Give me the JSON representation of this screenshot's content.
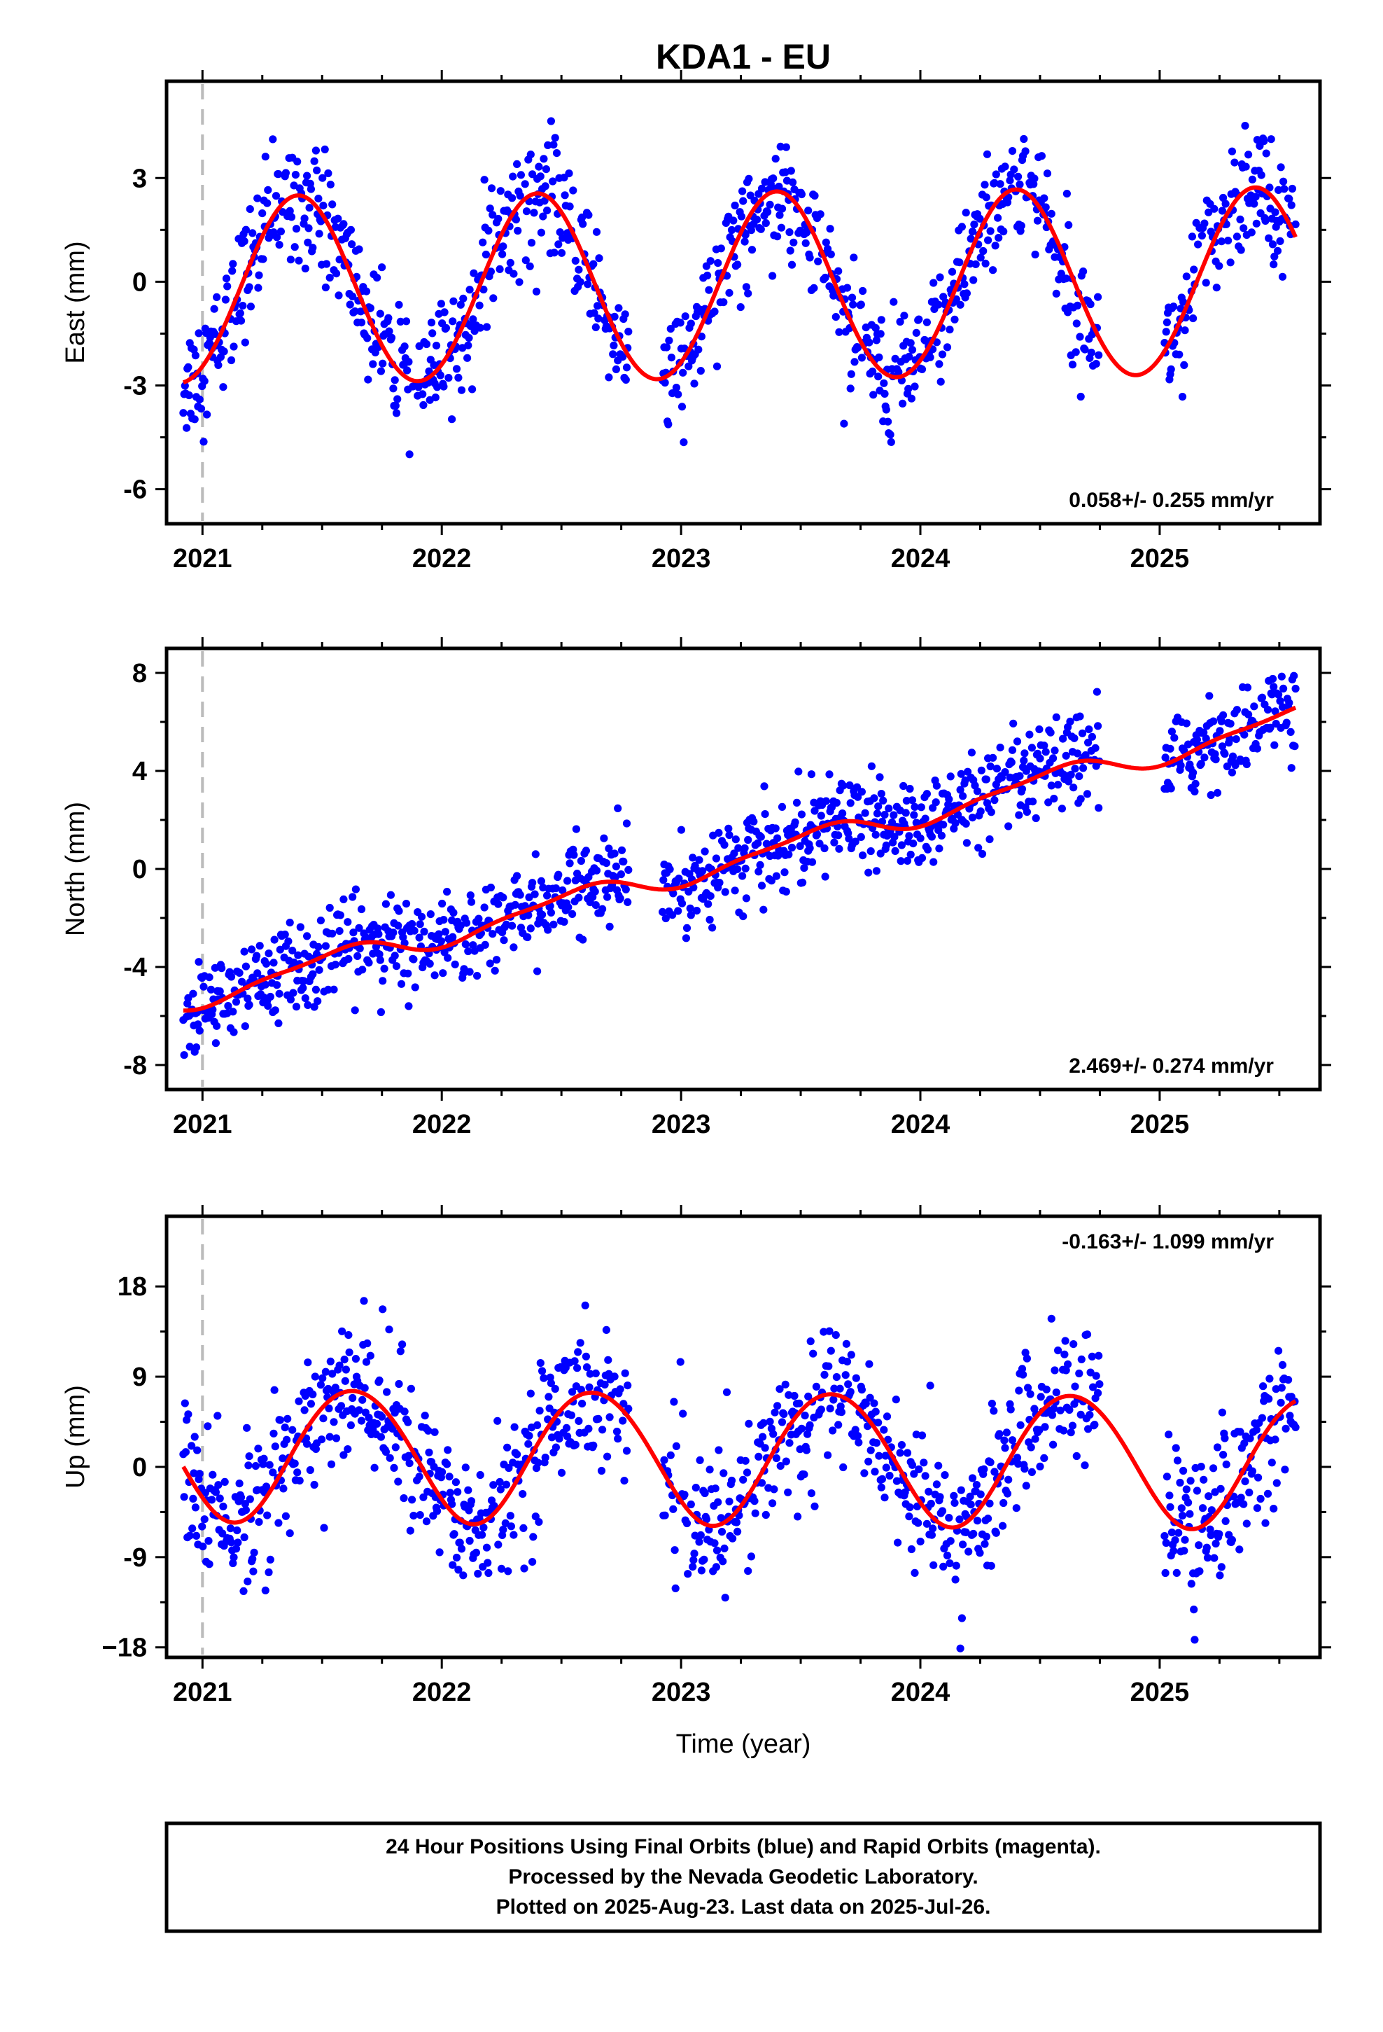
{
  "figure": {
    "title": "KDA1 - EU",
    "xlabel": "Time (year)",
    "caption_lines": [
      "24 Hour Positions Using Final Orbits (blue) and Rapid Orbits (magenta).",
      "Processed by the Nevada Geodetic Laboratory.",
      "Plotted on 2025-Aug-23. Last data on 2025-Jul-26."
    ]
  },
  "colors": {
    "points": "#0000ff",
    "model": "#ff0000",
    "reference_line": "#bbbbbb",
    "frame": "#000000"
  },
  "chart_data": [
    {
      "type": "scatter",
      "component": "east",
      "ylabel": "East (mm)",
      "rate_label": "0.058+/- 0.255 mm/yr",
      "rate_mm_per_yr": 0.058,
      "xlim": [
        2020.85,
        2025.67
      ],
      "ylim": [
        -7.0,
        5.8
      ],
      "xticks": [
        2021,
        2022,
        2023,
        2024,
        2025
      ],
      "xtick_labels": [
        "2021",
        "2022",
        "2023",
        "2024",
        "2025"
      ],
      "yticks": [
        -6,
        -3,
        0,
        3
      ],
      "ytick_labels": [
        "-6",
        "-3",
        "0",
        "3"
      ],
      "reference_epoch": 2021.0,
      "data_range": [
        2020.92,
        2025.57
      ],
      "gaps": [
        [
          2022.78,
          2022.92
        ],
        [
          2024.75,
          2025.02
        ]
      ],
      "model": {
        "offset": -0.15,
        "trend": 0.058,
        "t0": 2023.2,
        "annual_amp": 2.7,
        "annual_peak": 2021.4,
        "semiannual_amp": 0.05,
        "semiannual_peak": 2021.4
      },
      "scatter_sd": 0.85
    },
    {
      "type": "scatter",
      "component": "north",
      "ylabel": "North (mm)",
      "rate_label": "2.469+/- 0.274 mm/yr",
      "rate_mm_per_yr": 2.469,
      "xlim": [
        2020.85,
        2025.67
      ],
      "ylim": [
        -9.0,
        9.0
      ],
      "xticks": [
        2021,
        2022,
        2023,
        2024,
        2025
      ],
      "xtick_labels": [
        "2021",
        "2022",
        "2023",
        "2024",
        "2025"
      ],
      "yticks": [
        -8,
        -4,
        0,
        4,
        8
      ],
      "ytick_labels": [
        "-8",
        "-4",
        "0",
        "4",
        "8"
      ],
      "reference_epoch": 2021.0,
      "data_range": [
        2020.92,
        2025.57
      ],
      "gaps": [
        [
          2022.78,
          2022.92
        ],
        [
          2024.75,
          2025.02
        ]
      ],
      "model": {
        "offset": 0.3,
        "trend": 2.469,
        "t0": 2023.2,
        "annual_amp": 0.45,
        "annual_peak": 2021.55,
        "semiannual_amp": 0.15,
        "semiannual_peak": 2021.2
      },
      "scatter_sd": 0.9
    },
    {
      "type": "scatter",
      "component": "up",
      "ylabel": "Up (mm)",
      "rate_label": "-0.163+/- 1.099 mm/yr",
      "rate_mm_per_yr": -0.163,
      "xlim": [
        2020.85,
        2025.67
      ],
      "ylim": [
        -19.0,
        25.0
      ],
      "xticks": [
        2021,
        2022,
        2023,
        2024,
        2025
      ],
      "xtick_labels": [
        "2021",
        "2022",
        "2023",
        "2024",
        "2025"
      ],
      "yticks": [
        -18,
        -9,
        0,
        9,
        18
      ],
      "ytick_labels": [
        "−18",
        "-9",
        "0",
        "9",
        "18"
      ],
      "reference_epoch": 2021.0,
      "data_range": [
        2020.92,
        2025.57
      ],
      "gaps": [
        [
          2022.78,
          2022.92
        ],
        [
          2024.75,
          2025.02
        ]
      ],
      "model": {
        "offset": 1.0,
        "trend": -0.163,
        "t0": 2023.2,
        "annual_amp": 6.6,
        "annual_peak": 2021.63,
        "semiannual_amp": 0.3,
        "semiannual_peak": 2021.4
      },
      "scatter_sd": 3.6
    }
  ]
}
